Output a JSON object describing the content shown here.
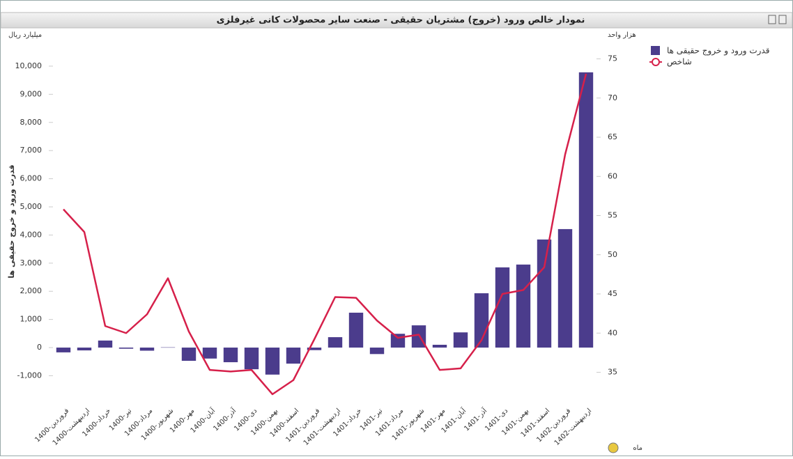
{
  "chart_data": {
    "type": "bar_line",
    "title": "نمودار خالص ورود (خروج) مشتریان حقیقی - صنعت سایر محصولات کانی غیرفلزی",
    "y_unit": "میلیارد ریال",
    "y2_unit": "هزار واحد",
    "y_axis_title": "قدرت ورود و خروج حقیقی ها",
    "x_axis_title": "ماه",
    "legend": "top-right",
    "categories": [
      "1400-فروردین",
      "1400-اردیبهشت",
      "1400-خرداد",
      "1400-تیر",
      "1400-مرداد",
      "1400-شهریور",
      "1400-مهر",
      "1400-آبان",
      "1400-آذر",
      "1400-دی",
      "1400-بهمن",
      "1400-اسفند",
      "1401-فروردین",
      "1401-اردیبهشت",
      "1401-خرداد",
      "1401-تیر",
      "1401-مرداد",
      "1401-شهریور",
      "1401-مهر",
      "1401-آبان",
      "1401-آذر",
      "1401-دی",
      "1401-بهمن",
      "1401-اسفند",
      "1402-فروردین",
      "1402-اردیبهشت"
    ],
    "series": [
      {
        "name": "قدرت ورود و خروج حقیقی ها",
        "type": "bar",
        "color": "#4b3c8c",
        "values": [
          -170,
          -100,
          250,
          -40,
          -110,
          10,
          -470,
          -390,
          -520,
          -770,
          -960,
          -570,
          -90,
          370,
          1240,
          -230,
          490,
          790,
          100,
          540,
          1930,
          2850,
          2950,
          3840,
          4210,
          9780
        ]
      },
      {
        "name": "شاخص",
        "type": "line",
        "axis": "y2",
        "color": "#d6204a",
        "values": [
          55.8,
          52.9,
          40.9,
          40.0,
          42.4,
          47.0,
          40.2,
          35.3,
          35.1,
          35.3,
          32.2,
          34.0,
          39.2,
          44.6,
          44.5,
          41.6,
          39.4,
          39.8,
          35.3,
          35.5,
          39.1,
          45.0,
          45.5,
          48.4,
          62.8,
          73.1
        ]
      }
    ],
    "ylim": [
      -1880,
      10370
    ],
    "yticks": [
      {
        "value": -1000,
        "label": "-1,000"
      },
      0,
      {
        "value": 1000,
        "label": "1,000"
      },
      {
        "value": 2000,
        "label": "2,000"
      },
      {
        "value": 3000,
        "label": "3,000"
      },
      {
        "value": 4000,
        "label": "4,000"
      },
      {
        "value": 5000,
        "label": "5,000"
      },
      {
        "value": 6000,
        "label": "6,000"
      },
      {
        "value": 7000,
        "label": "7,000"
      },
      {
        "value": 8000,
        "label": "8,000"
      },
      {
        "value": 9000,
        "label": "9,000"
      },
      {
        "value": 10000,
        "label": "10,000"
      }
    ],
    "y2lim": [
      31.4,
      75.4
    ],
    "y2ticks": [
      35,
      40,
      45,
      50,
      55,
      60,
      65,
      70,
      75
    ]
  }
}
